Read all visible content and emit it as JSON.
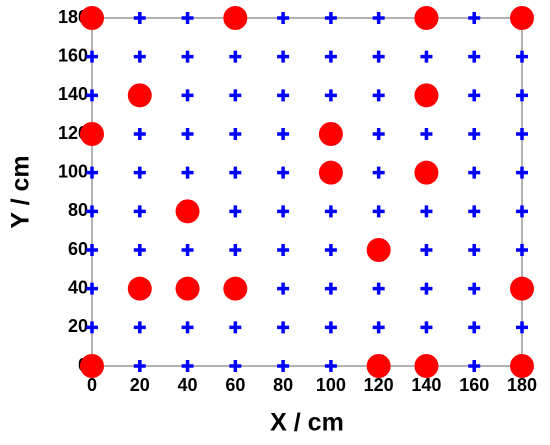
{
  "chart_data": {
    "type": "scatter",
    "xlabel": "X / cm",
    "ylabel": "Y / cm",
    "xlim": [
      0,
      180
    ],
    "ylim": [
      0,
      180
    ],
    "xticks": [
      0,
      20,
      40,
      60,
      80,
      100,
      120,
      140,
      160,
      180
    ],
    "yticks": [
      0,
      20,
      40,
      60,
      80,
      100,
      120,
      140,
      160,
      180
    ],
    "series": [
      {
        "color": "#0000ff",
        "marker": "plus",
        "x": [
          0,
          0,
          0,
          0,
          0,
          0,
          0,
          0,
          0,
          0,
          20,
          20,
          20,
          20,
          20,
          20,
          20,
          20,
          20,
          20,
          40,
          40,
          40,
          40,
          40,
          40,
          40,
          40,
          40,
          40,
          60,
          60,
          60,
          60,
          60,
          60,
          60,
          60,
          60,
          60,
          80,
          80,
          80,
          80,
          80,
          80,
          80,
          80,
          80,
          80,
          100,
          100,
          100,
          100,
          100,
          100,
          100,
          100,
          100,
          100,
          120,
          120,
          120,
          120,
          120,
          120,
          120,
          120,
          120,
          120,
          140,
          140,
          140,
          140,
          140,
          140,
          140,
          140,
          140,
          140,
          160,
          160,
          160,
          160,
          160,
          160,
          160,
          160,
          160,
          160,
          180,
          180,
          180,
          180,
          180,
          180,
          180,
          180,
          180,
          180
        ],
        "values": [
          0,
          20,
          40,
          60,
          80,
          100,
          120,
          140,
          160,
          180,
          0,
          20,
          40,
          60,
          80,
          100,
          120,
          140,
          160,
          180,
          0,
          20,
          40,
          60,
          80,
          100,
          120,
          140,
          160,
          180,
          0,
          20,
          40,
          60,
          80,
          100,
          120,
          140,
          160,
          180,
          0,
          20,
          40,
          60,
          80,
          100,
          120,
          140,
          160,
          180,
          0,
          20,
          40,
          60,
          80,
          100,
          120,
          140,
          160,
          180,
          0,
          20,
          40,
          60,
          80,
          100,
          120,
          140,
          160,
          180,
          0,
          20,
          40,
          60,
          80,
          100,
          120,
          140,
          160,
          180,
          0,
          20,
          40,
          60,
          80,
          100,
          120,
          140,
          160,
          180,
          0,
          20,
          40,
          60,
          80,
          100,
          120,
          140,
          160,
          180
        ]
      },
      {
        "color": "#ff0000",
        "marker": "circle",
        "x": [
          0,
          60,
          140,
          180,
          20,
          140,
          0,
          100,
          100,
          140,
          40,
          120,
          20,
          40,
          60,
          180,
          0,
          120,
          140,
          180
        ],
        "values": [
          180,
          180,
          180,
          180,
          140,
          140,
          120,
          120,
          100,
          100,
          80,
          60,
          40,
          40,
          40,
          40,
          0,
          0,
          0,
          0
        ]
      }
    ]
  }
}
